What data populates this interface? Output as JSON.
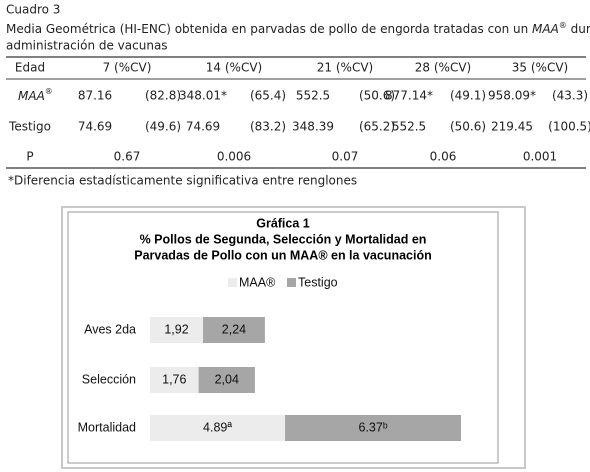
{
  "header": {
    "label": "Cuadro 3",
    "caption_line1": [
      "Media Geométrica (HI-ENC) obtenida en parvadas de pollo de engorda tratadas con un ",
      "MAA",
      "®",
      " durante la"
    ],
    "caption_line2": "administración de vacunas"
  },
  "table": {
    "header": [
      "Edad",
      "7 (%CV)",
      "14 (%CV)",
      "21 (%CV)",
      "28 (%CV)",
      "35 (%CV)"
    ],
    "rows": [
      {
        "label": "MAA",
        "label_mark": "®",
        "cells": [
          "87.16",
          "(82.8)",
          "348.01*",
          "(65.4)",
          "552.5",
          "(50.6)",
          "877.14*",
          "(49.1)",
          "958.09*",
          "(43.3)"
        ]
      },
      {
        "label": "Testigo",
        "cells": [
          "74.69",
          "(49.6)",
          "74.69",
          "(83.2)",
          "348.39",
          "(65.2)",
          "552.5",
          "(50.6)",
          "219.45",
          "(100.5)"
        ]
      },
      {
        "label": "P",
        "cells": [
          "0.67",
          "0.006",
          "0.07",
          "0.06",
          "0.001"
        ]
      }
    ]
  },
  "footnote": "*Diferencia estadísticamente significativa entre renglones",
  "chart_data": {
    "type": "stacked_barh",
    "title": [
      "Gráfica 1",
      "% Pollos de Segunda, Selección y Mortalidad en",
      "Parvadas de Pollo con un MAA® en la vacunación"
    ],
    "categories": [
      "Aves 2da",
      "Selección",
      "Mortalidad"
    ],
    "series": [
      {
        "name": "MAA®",
        "color": "#ececec",
        "values": [
          1.92,
          1.76,
          4.89
        ],
        "value_labels": [
          "1,92",
          "1,76",
          "4.89ª"
        ]
      },
      {
        "name": "Testigo",
        "color": "#a6a6a6",
        "values": [
          2.24,
          2.04,
          6.37
        ],
        "value_labels": [
          "2,24",
          "2,04",
          "6.37ᵇ"
        ]
      }
    ]
  }
}
